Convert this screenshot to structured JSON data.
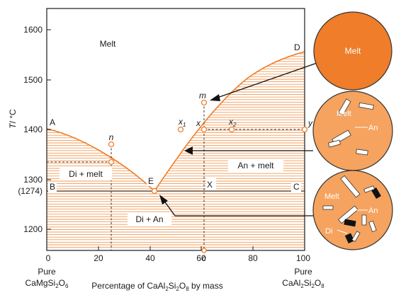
{
  "axes": {
    "y_label_T": "T",
    "y_label_unit": "/ °C",
    "y_ticks": [
      "1600",
      "1500",
      "1400",
      "1300",
      "1200"
    ],
    "y_special": "(1274)",
    "x_ticks": [
      "0",
      "20",
      "40",
      "60",
      "80",
      "100"
    ],
    "x_c": "c",
    "x_left_pure": "Pure",
    "x_right_pure": "Pure",
    "x_title": "Percentage of CaAl",
    "x_title_sub1": "2",
    "x_title_mid": "Si",
    "x_title_sub2": "2",
    "x_title_end": "O",
    "x_title_sub3": "8",
    "x_title_tail": " by mass",
    "left_comp": {
      "a": "CaMgSi",
      "s1": "2",
      "b": "O",
      "s2": "6"
    },
    "right_comp": {
      "a": "CaAl",
      "s1": "2",
      "b": "Si",
      "s2": "2",
      "c": "O",
      "s3": "8"
    }
  },
  "regions": {
    "melt": "Melt",
    "di_melt": "Di + melt",
    "an_melt": "An + melt",
    "di_an": "Di + An"
  },
  "points": {
    "A": "A",
    "B": "B",
    "C": "C",
    "D": "D",
    "E": "E",
    "X": "X",
    "n": "n",
    "m": "m",
    "x": "x",
    "y": "y",
    "x1": "x",
    "x1_sub": "1",
    "x2": "x",
    "x2_sub": "2"
  },
  "insets": {
    "melt_label": "Melt",
    "mid_melt_label": "Melt",
    "mid_an_label": "An",
    "low_melt_label": "Melt",
    "low_an_label": "An",
    "low_di_label": "Di"
  },
  "colors": {
    "melt_full": "#ef7d29",
    "melt_partial": "#f5a35f",
    "liquidus": "#ef7d29"
  }
}
